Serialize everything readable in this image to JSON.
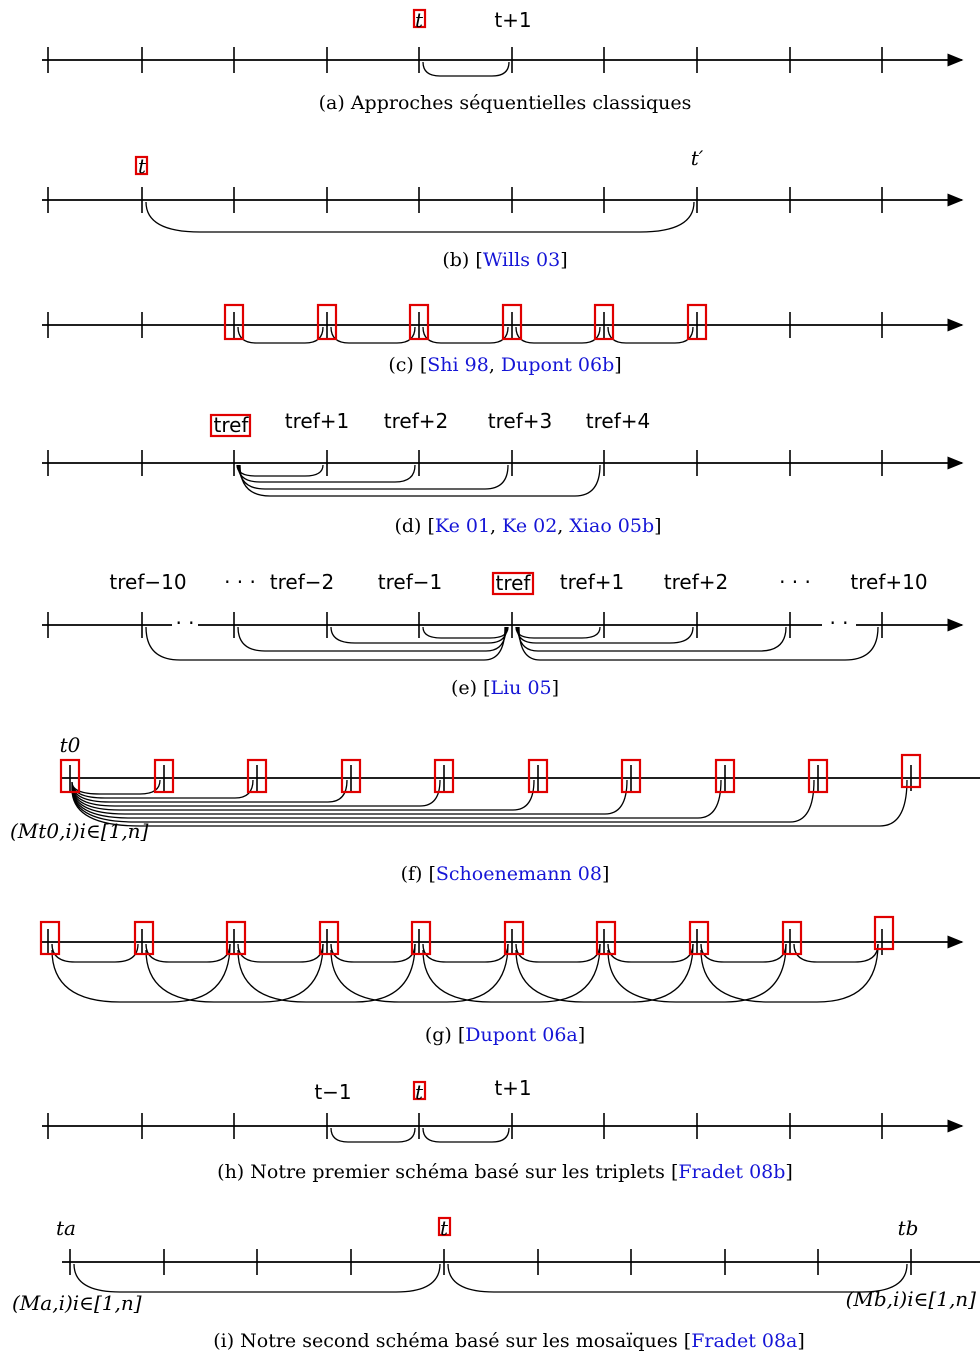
{
  "panels": [
    {
      "id": "a",
      "labels": [
        {
          "tick": 4,
          "text": "t",
          "boxed": true
        },
        {
          "tick": 5,
          "text": "t+1"
        }
      ],
      "caption": {
        "prefix": "(a) Approches séquentielles classiques",
        "cites": []
      }
    },
    {
      "id": "b",
      "labels": [
        {
          "tick": 1,
          "text": "t",
          "boxed": true
        },
        {
          "tick": 7,
          "text": "t′"
        }
      ],
      "caption": {
        "prefix": "(b) [",
        "cites": [
          "Wills 03"
        ],
        "suffix": "]"
      }
    },
    {
      "id": "c",
      "labels": [],
      "caption": {
        "prefix": "(c) [",
        "cites": [
          "Shi 98",
          "Dupont 06b"
        ],
        "suffix": "]"
      }
    },
    {
      "id": "d",
      "labels": [
        {
          "tick": 2,
          "text": "tref",
          "boxed": true
        },
        {
          "tick": 3,
          "text": "tref+1"
        },
        {
          "tick": 4,
          "text": "tref+2"
        },
        {
          "tick": 5,
          "text": "tref+3"
        },
        {
          "tick": 6,
          "text": "tref+4"
        }
      ],
      "caption": {
        "prefix": "(d) [",
        "cites": [
          "Ke 01",
          "Ke 02",
          "Xiao 05b"
        ],
        "suffix": "]"
      }
    },
    {
      "id": "e",
      "labels": [
        {
          "tick": 1,
          "text": "tref−10"
        },
        {
          "tick": 2,
          "text": "· · ·"
        },
        {
          "tick": 3,
          "text": "tref−2"
        },
        {
          "tick": 4,
          "text": "tref−1"
        },
        {
          "tick": 5,
          "text": "tref",
          "boxed": true
        },
        {
          "tick": 6,
          "text": "tref+1"
        },
        {
          "tick": 7,
          "text": "tref+2"
        },
        {
          "tick": 8,
          "text": "· · ·"
        },
        {
          "tick": 9,
          "text": "tref+10"
        }
      ],
      "caption": {
        "prefix": "(e) [",
        "cites": [
          "Liu 05"
        ],
        "suffix": "]"
      }
    },
    {
      "id": "f",
      "labels": [
        {
          "tick": 0,
          "text": "t0"
        }
      ],
      "side_label": "(Mt0,i)i∈[1,n]",
      "caption": {
        "prefix": "(f) [",
        "cites": [
          "Schoenemann 08"
        ],
        "suffix": "]"
      }
    },
    {
      "id": "g",
      "labels": [],
      "caption": {
        "prefix": "(g) [",
        "cites": [
          "Dupont 06a"
        ],
        "suffix": "]"
      }
    },
    {
      "id": "h",
      "labels": [
        {
          "tick": 3,
          "text": "t−1"
        },
        {
          "tick": 4,
          "text": "t",
          "boxed": true
        },
        {
          "tick": 5,
          "text": "t+1"
        }
      ],
      "caption": {
        "prefix": "(h) Notre premier schéma basé sur les triplets [",
        "cites": [
          "Fradet 08b"
        ],
        "suffix": "]"
      }
    },
    {
      "id": "i",
      "labels": [
        {
          "tick": 0,
          "text": "ta"
        },
        {
          "tick": 4,
          "text": "t",
          "boxed": true
        },
        {
          "tick": 9,
          "text": "tb"
        }
      ],
      "side_label_left": "(Ma,i)i∈[1,n]",
      "side_label_right": "(Mb,i)i∈[1,n]",
      "caption": {
        "prefix": "(i) Notre second schéma basé sur les mosaïques [",
        "cites": [
          "Fradet 08a"
        ],
        "suffix": "]"
      }
    }
  ]
}
